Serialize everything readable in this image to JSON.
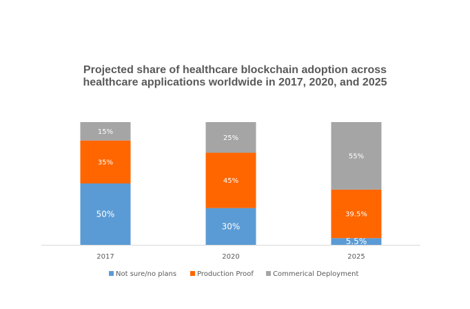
{
  "chart_data": {
    "type": "bar",
    "stacked": true,
    "title_lines": [
      "Projected share of healthcare blockchain adoption across",
      "healthcare applications worldwide in 2017, 2020, and 2025"
    ],
    "xlabel": "",
    "ylabel": "",
    "ylim": [
      0,
      100
    ],
    "grid": false,
    "legend_position": "bottom",
    "categories": [
      "2017",
      "2020",
      "2025"
    ],
    "series": [
      {
        "name": "Not sure/no plans",
        "color": "#5B9BD5",
        "values": [
          50,
          30,
          5.5
        ],
        "labels": [
          "50%",
          "30%",
          "5.5%"
        ]
      },
      {
        "name": "Production Proof",
        "color": "#FF6600",
        "values": [
          35,
          45,
          39.5
        ],
        "labels": [
          "35%",
          "45%",
          "39.5%"
        ]
      },
      {
        "name": "Commerical Deployment",
        "color": "#A5A5A5",
        "values": [
          15,
          25,
          55
        ],
        "labels": [
          "15%",
          "25%",
          "55%"
        ]
      }
    ],
    "axis_color": "#D9D9D9",
    "tick_label_color": "#595959",
    "data_label_color": "#ffffff"
  }
}
